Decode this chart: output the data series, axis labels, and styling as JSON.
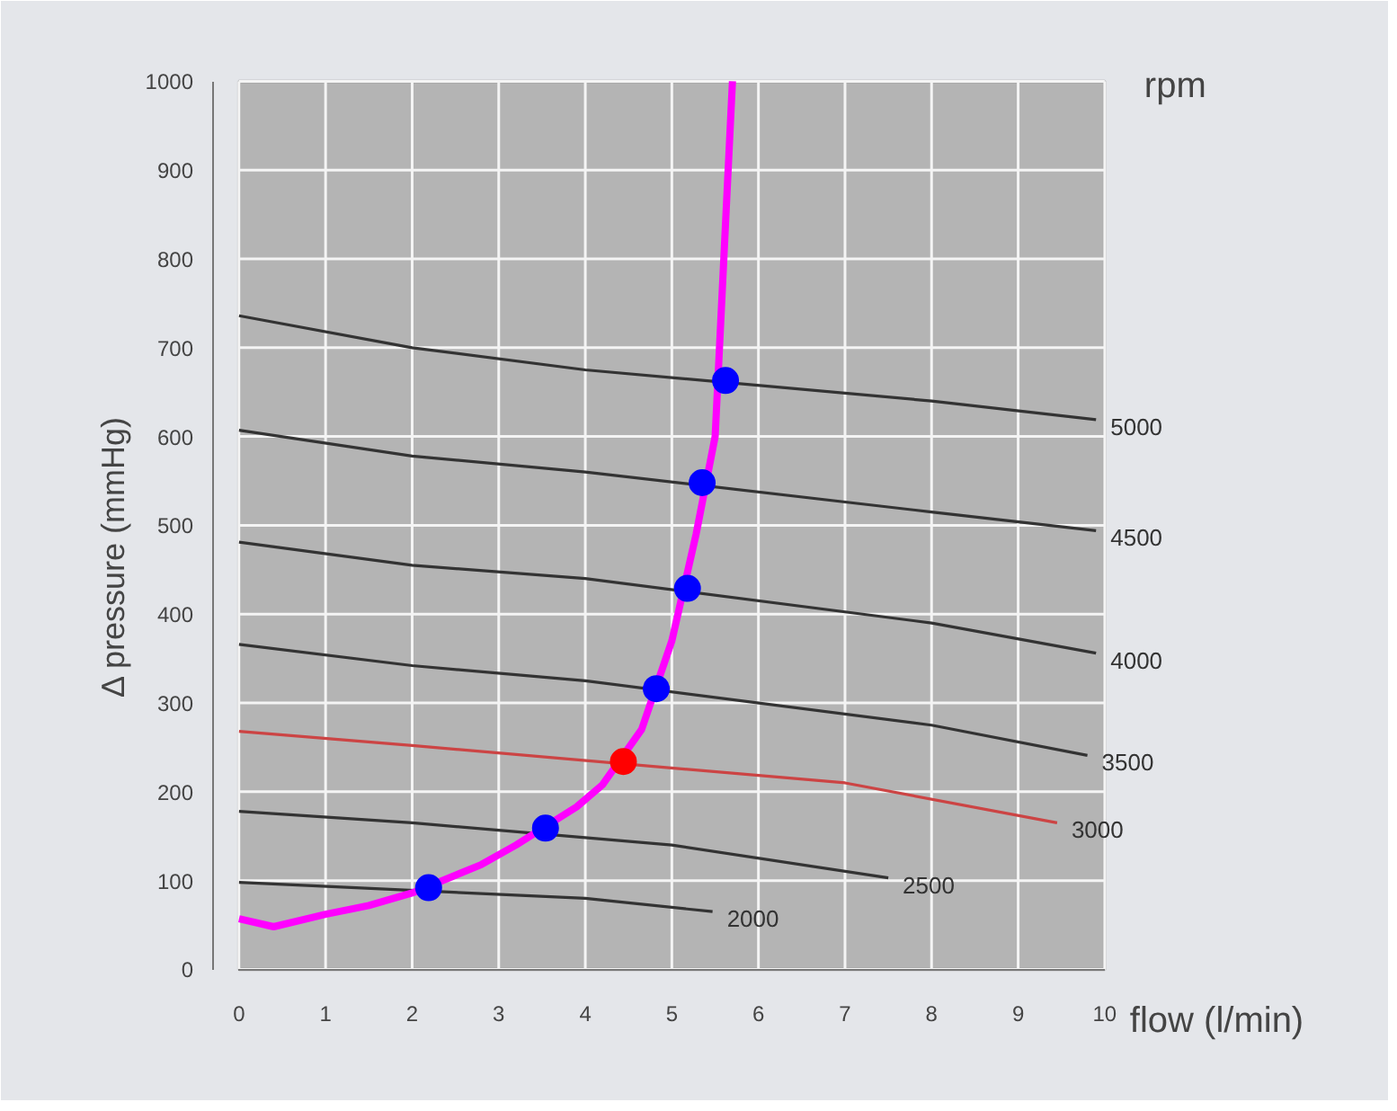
{
  "chart_data": {
    "type": "line",
    "xlabel": "flow (l/min)",
    "ylabel": "Δ pressure (mmHg)",
    "annotations": [
      "rpm"
    ],
    "xlim": [
      0,
      10
    ],
    "ylim": [
      0,
      1000
    ],
    "xticks": [
      0,
      1,
      2,
      3,
      4,
      5,
      6,
      7,
      8,
      9,
      10
    ],
    "yticks": [
      0,
      100,
      200,
      300,
      400,
      500,
      600,
      700,
      800,
      900,
      1000
    ],
    "grid": true,
    "line_style": "solid",
    "series": [
      {
        "name": "5000",
        "color": "#333333",
        "x": [
          0,
          2,
          4,
          8,
          9.9
        ],
        "values": [
          736,
          700,
          675,
          640,
          619
        ]
      },
      {
        "name": "4500",
        "color": "#333333",
        "x": [
          0,
          2,
          4,
          8,
          9.9
        ],
        "values": [
          607,
          578,
          560,
          515,
          494
        ]
      },
      {
        "name": "4000",
        "color": "#333333",
        "x": [
          0,
          2,
          4,
          8,
          9.9
        ],
        "values": [
          481,
          455,
          440,
          390,
          356
        ]
      },
      {
        "name": "3500",
        "color": "#333333",
        "x": [
          0,
          2,
          4,
          8,
          9.8
        ],
        "values": [
          366,
          342,
          325,
          275,
          241
        ]
      },
      {
        "name": "3000",
        "color": "#cc4444",
        "x": [
          0,
          2,
          7,
          9.45
        ],
        "values": [
          268,
          252,
          210,
          165
        ]
      },
      {
        "name": "2500",
        "color": "#333333",
        "x": [
          0,
          2,
          5,
          7.5
        ],
        "values": [
          178,
          165,
          140,
          103
        ]
      },
      {
        "name": "2000",
        "color": "#333333",
        "x": [
          0,
          4,
          5.47
        ],
        "values": [
          98,
          80,
          65
        ]
      },
      {
        "color": "#ff00ff",
        "x": [
          0,
          0.4,
          1,
          1.5,
          2,
          2.8,
          3.2,
          3.9,
          4.2,
          4.65,
          5,
          5.28,
          5.5,
          5.7
        ],
        "values": [
          57,
          48,
          62,
          72,
          86,
          118,
          140,
          183,
          208,
          270,
          370,
          490,
          600,
          1000
        ]
      },
      {
        "type": "scatter",
        "marker": "circle",
        "x": [
          2.19,
          3.54,
          4.44,
          4.82,
          5.18,
          5.35,
          5.62
        ],
        "values": [
          92,
          159,
          234,
          316,
          429,
          548,
          663
        ],
        "colors": [
          "#0000ff",
          "#0000ff",
          "#ff0000",
          "#0000ff",
          "#0000ff",
          "#0000ff",
          "#0000ff"
        ]
      }
    ]
  }
}
